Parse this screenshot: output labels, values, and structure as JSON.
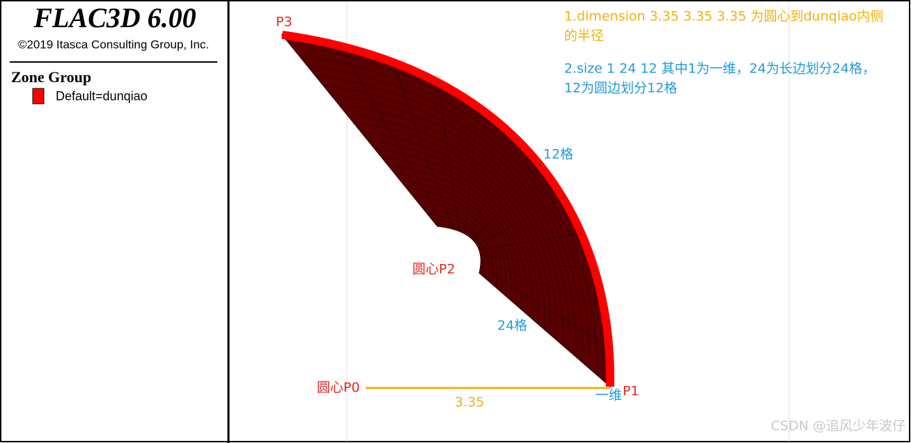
{
  "header": {
    "title": "FLAC3D 6.00",
    "copyright": "©2019 Itasca Consulting Group, Inc."
  },
  "legend": {
    "title": "Zone Group",
    "items": [
      {
        "label": "Default=dunqiao",
        "color": "#ff0000"
      }
    ]
  },
  "notes": [
    {
      "lines": [
        "1.dimension 3.35 3.35 3.35  为圆心到dunqiao内侧",
        "的半径"
      ]
    },
    {
      "lines": [
        "2.size 1 24 12  其中1为一维，24为长边划分24格，",
        "12为圆边划分12格"
      ]
    }
  ],
  "labels": {
    "p3": "P3",
    "arc_cells": "12格",
    "p2": "圆心P2",
    "radial_cells": "24格",
    "p0": "圆心P0",
    "length": "3.35",
    "p1": "P1",
    "thickness": "一维"
  },
  "watermark": "CSDN @追风少年波仔"
}
